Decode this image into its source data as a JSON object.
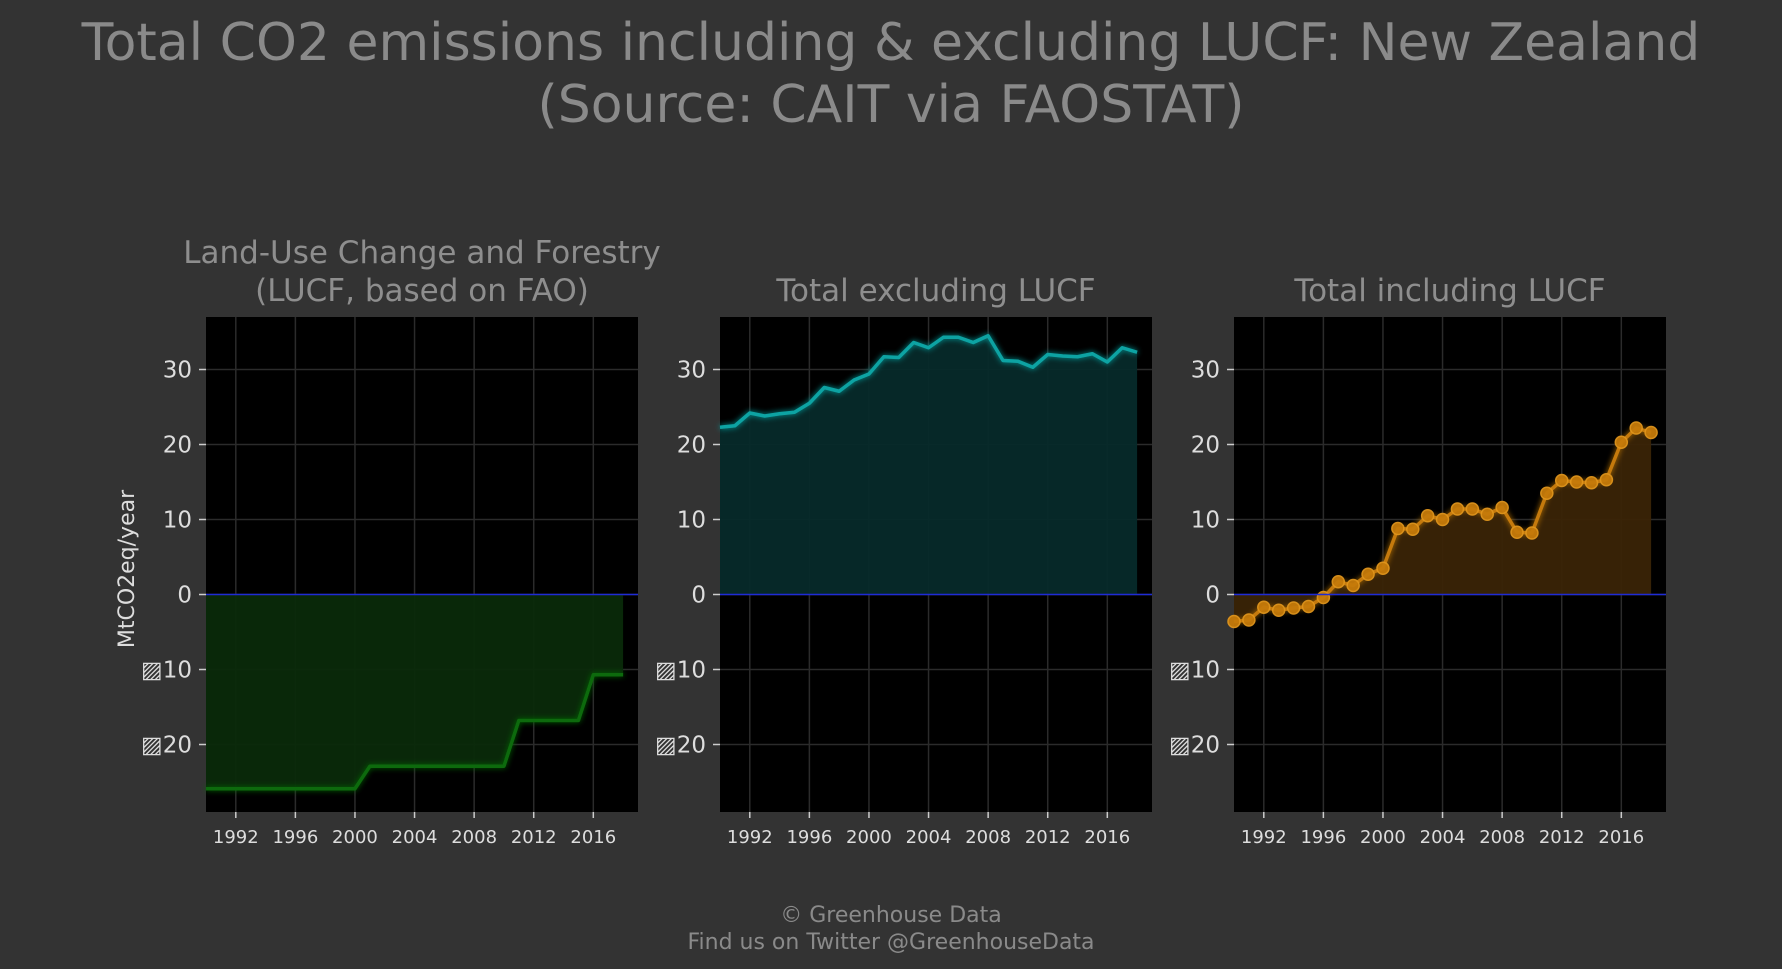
{
  "title_line1": "Total CO2 emissions including & excluding LUCF: New Zealand",
  "title_line2": "(Source: CAIT via FAOSTAT)",
  "ylabel": "MtCO2eq/year",
  "footer_line1": "© Greenhouse Data",
  "footer_line2": "Find us on Twitter @GreenhouseData",
  "axis": {
    "ylim": [
      -29,
      37
    ],
    "yticks": [
      30,
      20,
      10,
      0,
      -10,
      -20
    ],
    "ytick_labels": [
      "30",
      "20",
      "10",
      "0",
      "▨10",
      "▨20"
    ],
    "xlim": [
      1990,
      2019
    ],
    "xticks": [
      1992,
      1996,
      2000,
      2004,
      2008,
      2012,
      2016
    ],
    "xtick_labels": [
      "1992",
      "1996",
      "2000",
      "2004",
      "2008",
      "2012",
      "2016"
    ],
    "grid": true,
    "zero_line_color": "#1f2bd6"
  },
  "chart_data": [
    {
      "type": "area",
      "title_line1": "Land-Use Change and Forestry",
      "title_line2": "(LUCF, based on FAO)",
      "color": "#0c6b0c",
      "fill": "#0a2a0a",
      "markers": false,
      "x": [
        1990,
        1991,
        1992,
        1993,
        1994,
        1995,
        1996,
        1997,
        1998,
        1999,
        2000,
        2001,
        2002,
        2003,
        2004,
        2005,
        2006,
        2007,
        2008,
        2009,
        2010,
        2011,
        2012,
        2013,
        2014,
        2015,
        2016,
        2017,
        2018
      ],
      "y": [
        -25.9,
        -25.9,
        -25.9,
        -25.9,
        -25.9,
        -25.9,
        -25.9,
        -25.9,
        -25.9,
        -25.9,
        -25.9,
        -22.9,
        -22.9,
        -22.9,
        -22.9,
        -22.9,
        -22.9,
        -22.9,
        -22.9,
        -22.9,
        -22.9,
        -16.8,
        -16.8,
        -16.8,
        -16.8,
        -16.8,
        -10.7,
        -10.7,
        -10.7
      ]
    },
    {
      "type": "area",
      "title_line1": "",
      "title_line2": "Total excluding LUCF",
      "color": "#0fa3a3",
      "fill": "#062a2a",
      "markers": false,
      "x": [
        1990,
        1991,
        1992,
        1993,
        1994,
        1995,
        1996,
        1997,
        1998,
        1999,
        2000,
        2001,
        2002,
        2003,
        2004,
        2005,
        2006,
        2007,
        2008,
        2009,
        2010,
        2011,
        2012,
        2013,
        2014,
        2015,
        2016,
        2017,
        2018
      ],
      "y": [
        22.3,
        22.5,
        24.2,
        23.8,
        24.1,
        24.3,
        25.5,
        27.6,
        27.1,
        28.6,
        29.4,
        31.7,
        31.6,
        33.6,
        32.9,
        34.3,
        34.3,
        33.6,
        34.5,
        31.2,
        31.1,
        30.3,
        32.0,
        31.8,
        31.7,
        32.1,
        31.0,
        32.9,
        32.3
      ]
    },
    {
      "type": "area",
      "title_line1": "",
      "title_line2": "Total including LUCF",
      "color": "#c57a0a",
      "fill": "#3a2406",
      "markers": true,
      "x": [
        1990,
        1991,
        1992,
        1993,
        1994,
        1995,
        1996,
        1997,
        1998,
        1999,
        2000,
        2001,
        2002,
        2003,
        2004,
        2005,
        2006,
        2007,
        2008,
        2009,
        2010,
        2011,
        2012,
        2013,
        2014,
        2015,
        2016,
        2017,
        2018
      ],
      "y": [
        -3.6,
        -3.4,
        -1.7,
        -2.1,
        -1.8,
        -1.6,
        -0.4,
        1.7,
        1.2,
        2.7,
        3.5,
        8.8,
        8.7,
        10.5,
        10.0,
        11.4,
        11.4,
        10.7,
        11.6,
        8.3,
        8.2,
        13.5,
        15.2,
        15.0,
        14.9,
        15.3,
        20.3,
        22.2,
        21.6
      ]
    }
  ]
}
